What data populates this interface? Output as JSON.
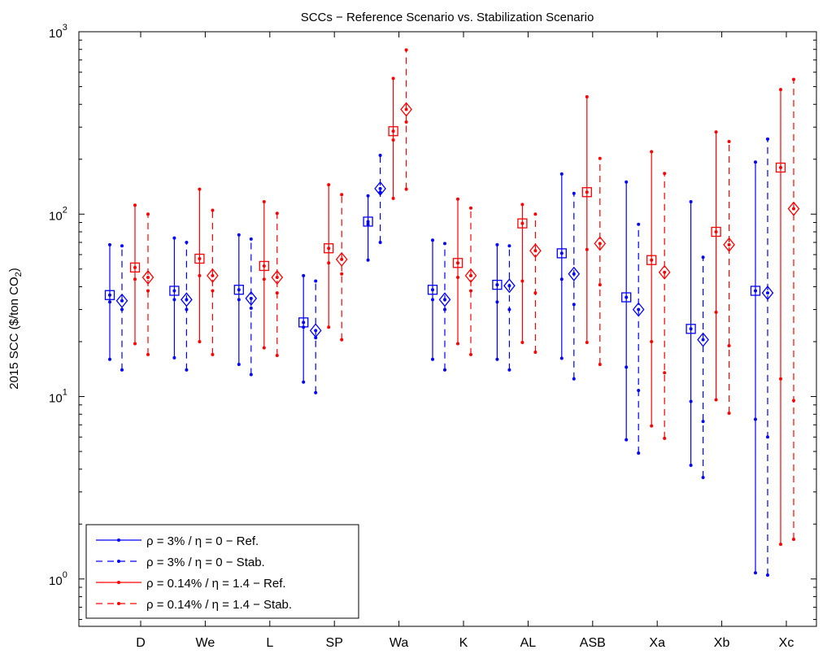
{
  "chart_data": {
    "type": "errorbar",
    "title": "SCCs − Reference Scenario vs. Stabilization Scenario",
    "ylabel_main": "2015 SCC ($/ton CO",
    "ylabel_sub": "2",
    "ylabel_end": ")",
    "yscale": "log",
    "ylim": [
      0.55,
      1000
    ],
    "y_ticks": [
      {
        "value": 1,
        "base": "10",
        "exp": "0"
      },
      {
        "value": 10,
        "base": "10",
        "exp": "1"
      },
      {
        "value": 100,
        "base": "10",
        "exp": "2"
      },
      {
        "value": 1000,
        "base": "10",
        "exp": "3"
      }
    ],
    "categories": [
      "D",
      "We",
      "L",
      "SP",
      "Wa",
      "K",
      "AL",
      "ASB",
      "Xa",
      "Xb",
      "Xc"
    ],
    "series": [
      {
        "name": "ρ = 3% / η = 0 − Ref.",
        "color": "#0000ff",
        "dashed": false,
        "marker": "square",
        "points": [
          {
            "center": 36,
            "low": 16,
            "q_low": 33,
            "q_high": 36,
            "high": 68
          },
          {
            "center": 38,
            "low": 16.3,
            "q_low": 34,
            "q_high": 38,
            "high": 74
          },
          {
            "center": 38.5,
            "low": 15,
            "q_low": 34,
            "q_high": 38.5,
            "high": 77
          },
          {
            "center": 25.5,
            "low": 12,
            "q_low": 24,
            "q_high": 25.5,
            "high": 46
          },
          {
            "center": 91,
            "low": 56,
            "q_low": 88,
            "q_high": 91,
            "high": 126
          },
          {
            "center": 38.5,
            "low": 16,
            "q_low": 34,
            "q_high": 38.5,
            "high": 72
          },
          {
            "center": 41,
            "low": 16,
            "q_low": 33,
            "q_high": 41,
            "high": 68
          },
          {
            "center": 61,
            "low": 16.2,
            "q_low": 44,
            "q_high": 61,
            "high": 166
          },
          {
            "center": 35,
            "low": 5.8,
            "q_low": 14.5,
            "q_high": 35,
            "high": 150
          },
          {
            "center": 23.5,
            "low": 4.2,
            "q_low": 9.4,
            "q_high": 23.5,
            "high": 117
          },
          {
            "center": 38,
            "low": 1.08,
            "q_low": 7.5,
            "q_high": 38,
            "high": 193
          }
        ]
      },
      {
        "name": "ρ = 3% / η = 0 − Stab.",
        "color": "#0000ff",
        "dashed": true,
        "marker": "diamond",
        "points": [
          {
            "center": 33.5,
            "low": 14,
            "q_low": 30,
            "q_high": 33.5,
            "high": 67
          },
          {
            "center": 34,
            "low": 14,
            "q_low": 30,
            "q_high": 34,
            "high": 70
          },
          {
            "center": 34.5,
            "low": 13.2,
            "q_low": 30.5,
            "q_high": 34.5,
            "high": 73
          },
          {
            "center": 23,
            "low": 10.5,
            "q_low": 21,
            "q_high": 23,
            "high": 43
          },
          {
            "center": 138,
            "low": 70,
            "q_low": 132,
            "q_high": 138,
            "high": 210
          },
          {
            "center": 34,
            "low": 14,
            "q_low": 30,
            "q_high": 34,
            "high": 69
          },
          {
            "center": 40.5,
            "low": 14,
            "q_low": 30,
            "q_high": 40.5,
            "high": 67
          },
          {
            "center": 47,
            "low": 12.5,
            "q_low": 32,
            "q_high": 47,
            "high": 130
          },
          {
            "center": 30,
            "low": 4.9,
            "q_low": 10.8,
            "q_high": 30,
            "high": 88
          },
          {
            "center": 20.5,
            "low": 3.6,
            "q_low": 7.3,
            "q_high": 20.5,
            "high": 58
          },
          {
            "center": 37,
            "low": 1.05,
            "q_low": 6,
            "q_high": 37,
            "high": 258
          }
        ]
      },
      {
        "name": "ρ = 0.14% / η = 1.4 − Ref.",
        "color": "#ff0000",
        "dashed": false,
        "marker": "square",
        "points": [
          {
            "center": 51,
            "low": 19.5,
            "q_low": 44,
            "q_high": 51,
            "high": 112
          },
          {
            "center": 57,
            "low": 20,
            "q_low": 46,
            "q_high": 57,
            "high": 137
          },
          {
            "center": 52,
            "low": 18.5,
            "q_low": 44,
            "q_high": 52,
            "high": 117
          },
          {
            "center": 65,
            "low": 24,
            "q_low": 54,
            "q_high": 65,
            "high": 145
          },
          {
            "center": 285,
            "low": 122,
            "q_low": 255,
            "q_high": 285,
            "high": 555
          },
          {
            "center": 54,
            "low": 19.5,
            "q_low": 45,
            "q_high": 54,
            "high": 121
          },
          {
            "center": 89,
            "low": 19.8,
            "q_low": 43,
            "q_high": 89,
            "high": 113
          },
          {
            "center": 132,
            "low": 19.8,
            "q_low": 64,
            "q_high": 132,
            "high": 440
          },
          {
            "center": 56,
            "low": 6.9,
            "q_low": 20,
            "q_high": 56,
            "high": 220
          },
          {
            "center": 80,
            "low": 9.6,
            "q_low": 29,
            "q_high": 80,
            "high": 282
          },
          {
            "center": 180,
            "low": 1.55,
            "q_low": 12.5,
            "q_high": 180,
            "high": 482
          }
        ]
      },
      {
        "name": "ρ = 0.14% / η = 1.4 − Stab.",
        "color": "#ff0000",
        "dashed": true,
        "marker": "diamond",
        "points": [
          {
            "center": 45,
            "low": 17,
            "q_low": 38,
            "q_high": 45,
            "high": 100
          },
          {
            "center": 46,
            "low": 17,
            "q_low": 38,
            "q_high": 46,
            "high": 105
          },
          {
            "center": 45,
            "low": 16.8,
            "q_low": 37,
            "q_high": 45,
            "high": 101
          },
          {
            "center": 56.5,
            "low": 20.5,
            "q_low": 47,
            "q_high": 56.5,
            "high": 128
          },
          {
            "center": 375,
            "low": 137,
            "q_low": 320,
            "q_high": 375,
            "high": 795
          },
          {
            "center": 46,
            "low": 17,
            "q_low": 38,
            "q_high": 46,
            "high": 108
          },
          {
            "center": 63,
            "low": 17.5,
            "q_low": 37,
            "q_high": 63,
            "high": 100
          },
          {
            "center": 69,
            "low": 15,
            "q_low": 41,
            "q_high": 69,
            "high": 202
          },
          {
            "center": 48,
            "low": 5.9,
            "q_low": 13.5,
            "q_high": 48,
            "high": 167
          },
          {
            "center": 68,
            "low": 8.1,
            "q_low": 19,
            "q_high": 68,
            "high": 250
          },
          {
            "center": 107,
            "low": 1.65,
            "q_low": 9.5,
            "q_high": 107,
            "high": 548
          }
        ]
      }
    ],
    "legend_position": "bottom-left"
  }
}
